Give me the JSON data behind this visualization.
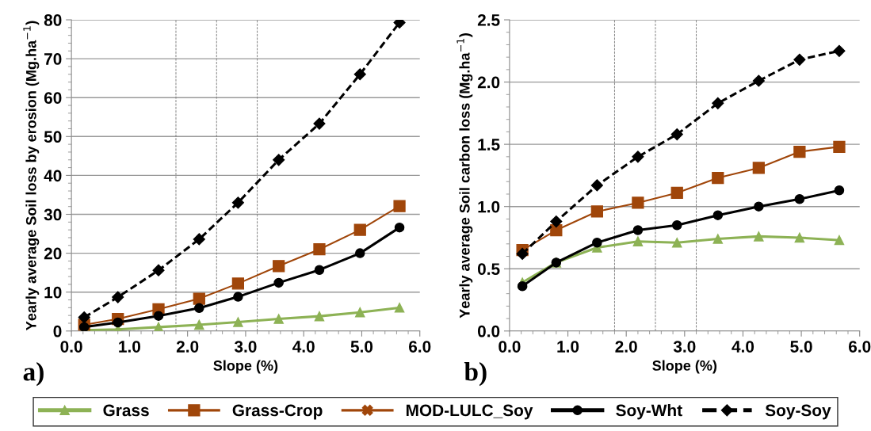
{
  "chart_data": [
    {
      "type": "line",
      "xlabel": "Slope (%)",
      "ylabel": "Yearly average Soil loss by erosion (Mg.ha$^{−1}$)",
      "x": [
        0.22,
        0.8,
        1.5,
        2.2,
        2.87,
        3.57,
        4.27,
        4.97,
        5.65
      ],
      "xlim": [
        0,
        6
      ],
      "xticks": [
        {
          "value": 0,
          "label": "0.0"
        },
        {
          "value": 1,
          "label": "1.0"
        },
        {
          "value": 2,
          "label": "2.0"
        },
        {
          "value": 3,
          "label": "3.0"
        },
        {
          "value": 4,
          "label": "4.0"
        },
        {
          "value": 5,
          "label": "5.0"
        },
        {
          "value": 6,
          "label": "6.0"
        }
      ],
      "ylim": [
        0,
        80
      ],
      "yticks": [
        0,
        10,
        20,
        30,
        40,
        50,
        60,
        70,
        80
      ],
      "grid": "y",
      "legend": "bottom",
      "annotations": [
        "a)"
      ],
      "ref_lines": [
        {
          "axis": "x",
          "value": 1.8,
          "color": "#808080",
          "line_style": "dashed"
        },
        {
          "axis": "x",
          "value": 2.5,
          "color": "#808080",
          "line_style": "dashed"
        },
        {
          "axis": "x",
          "value": 3.2,
          "color": "#808080",
          "line_style": "dashed"
        }
      ],
      "series": [
        {
          "name": "Grass",
          "color": "#8db255",
          "marker": "triangle",
          "line_style": "solid",
          "values": [
            0.2,
            0.4,
            1.0,
            1.6,
            2.3,
            3.1,
            3.8,
            4.8,
            6.0
          ]
        },
        {
          "name": "Grass-Crop",
          "color": "#a0460a",
          "marker": "square",
          "line_style": "solid",
          "values": [
            1.6,
            3.1,
            5.6,
            8.3,
            12.2,
            16.7,
            21.0,
            26.0,
            32.1
          ]
        },
        {
          "name": "MOD-LULC_Soy",
          "color": "#a0460a",
          "marker": "cross",
          "line_style": "solid",
          "values": [
            null,
            null,
            null,
            null,
            null,
            null,
            null,
            null,
            null
          ]
        },
        {
          "name": "Soy-Wht",
          "color": "#000000",
          "marker": "circle",
          "line_style": "solid",
          "values": [
            1.0,
            2.2,
            3.9,
            5.9,
            8.8,
            12.4,
            15.7,
            20.0,
            26.6
          ]
        },
        {
          "name": "Soy-Soy",
          "color": "#000000",
          "marker": "diamond",
          "line_style": "dashed",
          "values": [
            3.5,
            8.7,
            15.6,
            23.6,
            33.0,
            44.0,
            53.3,
            66.0,
            79.3
          ]
        }
      ]
    },
    {
      "type": "line",
      "xlabel": "Slope (%)",
      "ylabel": "Yearly average Soil carbon loss (Mg.ha$^{−1}$)",
      "x": [
        0.22,
        0.8,
        1.5,
        2.2,
        2.87,
        3.57,
        4.27,
        4.97,
        5.65
      ],
      "xlim": [
        0,
        6
      ],
      "xticks": [
        {
          "value": 0,
          "label": "0.0"
        },
        {
          "value": 1,
          "label": "1.0"
        },
        {
          "value": 2,
          "label": "2.0"
        },
        {
          "value": 3,
          "label": "3.0"
        },
        {
          "value": 4,
          "label": "4.0"
        },
        {
          "value": 5,
          "label": "5.0"
        },
        {
          "value": 6,
          "label": "6.0"
        }
      ],
      "ylim": [
        0,
        2.5
      ],
      "yticks": [
        {
          "value": 0,
          "label": "0.0"
        },
        {
          "value": 0.5,
          "label": "0.5"
        },
        {
          "value": 1,
          "label": "1.0"
        },
        {
          "value": 1.5,
          "label": "1.5"
        },
        {
          "value": 2,
          "label": "2.0"
        },
        {
          "value": 2.5,
          "label": "2.5"
        }
      ],
      "grid": "y",
      "annotations": [
        "b)"
      ],
      "ref_lines": [
        {
          "axis": "x",
          "value": 1.8,
          "color": "#808080",
          "line_style": "dashed"
        },
        {
          "axis": "x",
          "value": 2.5,
          "color": "#808080",
          "line_style": "dashed"
        },
        {
          "axis": "x",
          "value": 3.2,
          "color": "#808080",
          "line_style": "dashed"
        }
      ],
      "series": [
        {
          "color": "#8db255",
          "marker": "triangle",
          "line_style": "solid",
          "values": [
            0.39,
            0.55,
            0.67,
            0.72,
            0.71,
            0.74,
            0.76,
            0.75,
            0.73
          ]
        },
        {
          "color": "#a0460a",
          "marker": "square",
          "line_style": "solid",
          "values": [
            0.65,
            0.81,
            0.96,
            1.03,
            1.11,
            1.23,
            1.31,
            1.44,
            1.48
          ]
        },
        {
          "color": "#a0460a",
          "marker": "cross",
          "line_style": "solid",
          "values": [
            null,
            null,
            null,
            null,
            null,
            null,
            null,
            null,
            null
          ]
        },
        {
          "color": "#000000",
          "marker": "circle",
          "line_style": "solid",
          "values": [
            0.36,
            0.55,
            0.71,
            0.81,
            0.85,
            0.93,
            1.0,
            1.06,
            1.13
          ]
        },
        {
          "color": "#000000",
          "marker": "diamond",
          "line_style": "dashed",
          "values": [
            0.62,
            0.88,
            1.17,
            1.4,
            1.58,
            1.83,
            2.01,
            2.18,
            2.25
          ]
        }
      ]
    }
  ]
}
